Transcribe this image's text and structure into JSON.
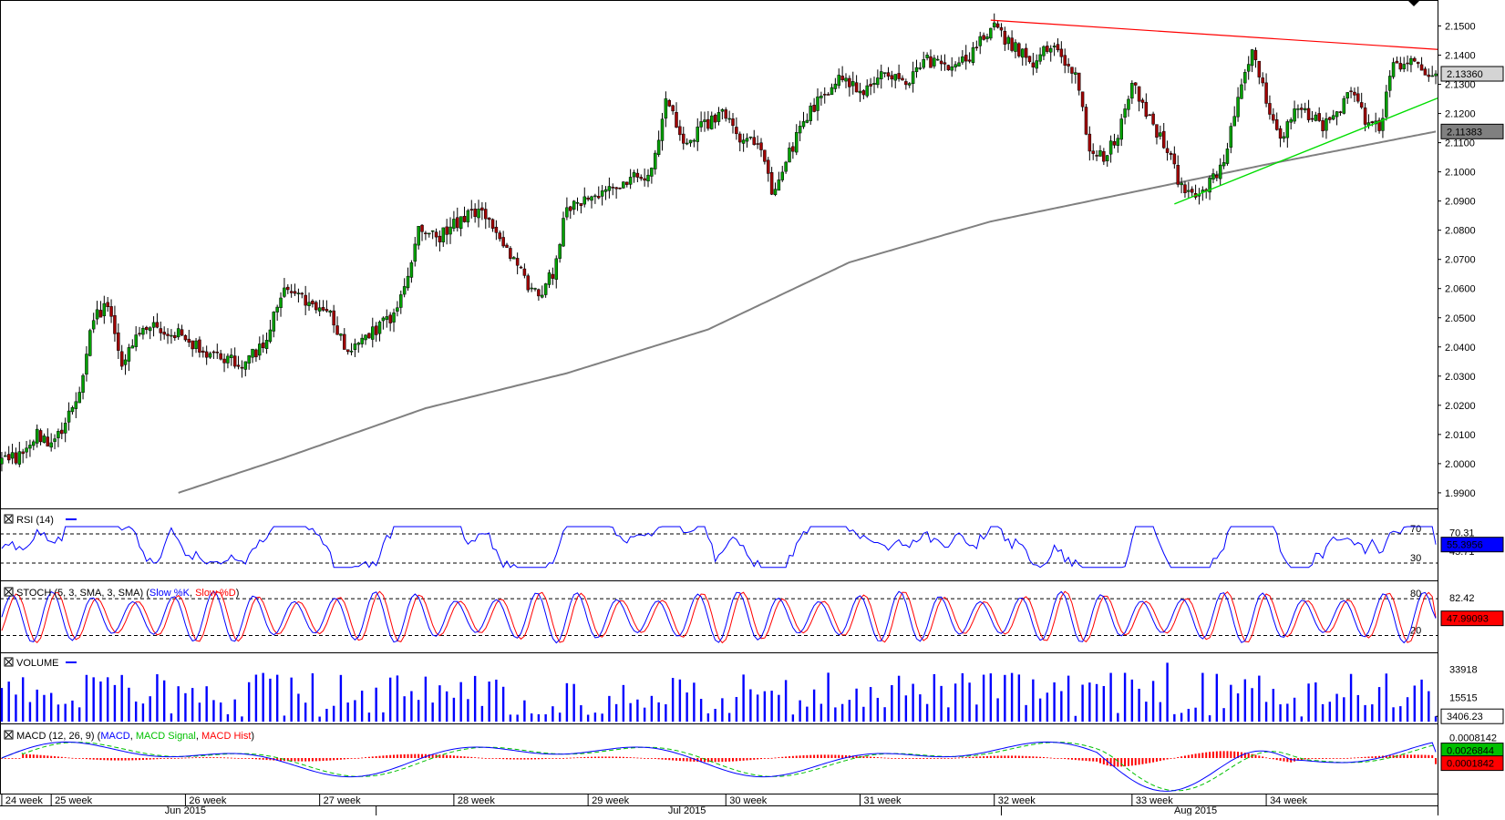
{
  "main_pane": {
    "price_ticks": [
      "2.1500",
      "2.1400",
      "2.1300",
      "2.1200",
      "2.1100",
      "2.1000",
      "2.0900",
      "2.0800",
      "2.0700",
      "2.0600",
      "2.0500",
      "2.0400",
      "2.0300",
      "2.0200",
      "2.0100",
      "2.0000",
      "1.9900"
    ],
    "last_price": "2.13360",
    "ma_value": "2.11383"
  },
  "rsi": {
    "title_text": "RSI (14)",
    "level_high": "70",
    "level_low": "30",
    "tick_high": "70.31",
    "tick_low": "45.71",
    "current": "55.3956"
  },
  "stoch": {
    "title_text": "STOCH (5, 3, SMA, 3, SMA)",
    "k_label": "Slow %K",
    "d_label": "Slow %D",
    "level_high": "80",
    "level_low": "20",
    "tick_high": "82.42",
    "current": "47.99093"
  },
  "volume": {
    "title_text": "VOLUME",
    "tick_high": "33918",
    "tick_mid": "15515",
    "current": "3406.23"
  },
  "macd": {
    "title_text": "MACD (12, 26, 9)",
    "macd_label": "MACD",
    "signal_label": "MACD Signal",
    "hist_label": "MACD Hist",
    "tick_high": "0.0008142",
    "macd_current": "0.0026844",
    "hist_current": "0.0001842"
  },
  "time_axis": {
    "weeks": [
      "24 week",
      "25 week",
      "26 week",
      "27 week",
      "28 week",
      "29 week",
      "30 week",
      "31 week",
      "32 week",
      "33 week",
      "34 week"
    ],
    "months": [
      "Jun 2015",
      "Jul 2015",
      "Aug 2015"
    ]
  },
  "colors": {
    "up_candle": "#00a000",
    "down_candle": "#a00000",
    "ma_line": "#808080",
    "resistance_line": "#ff0000",
    "support_line": "#00dd00",
    "rsi_line": "#0000ff",
    "stoch_k": "#0000ff",
    "stoch_d": "#ff0000",
    "volume_bar": "#0000ff",
    "macd_line": "#0000ff",
    "macd_signal": "#00c000",
    "macd_hist": "#ff0000"
  },
  "chart_data": {
    "type": "candlestick",
    "instrument_timeframe": "4-hour bars, June–August 2015",
    "y_range": [
      1.985,
      2.155
    ],
    "indicators": [
      "RSI (14)",
      "STOCH (5, 3, SMA, 3, SMA)",
      "VOLUME",
      "MACD (12, 26, 9)"
    ],
    "close_path": [
      [
        0,
        2.0
      ],
      [
        5,
        2.003
      ],
      [
        10,
        2.01
      ],
      [
        14,
        2.005
      ],
      [
        18,
        2.015
      ],
      [
        22,
        2.024
      ],
      [
        26,
        2.05
      ],
      [
        30,
        2.054
      ],
      [
        34,
        2.034
      ],
      [
        38,
        2.044
      ],
      [
        44,
        2.047
      ],
      [
        50,
        2.045
      ],
      [
        56,
        2.039
      ],
      [
        62,
        2.036
      ],
      [
        68,
        2.034
      ],
      [
        74,
        2.04
      ],
      [
        80,
        2.06
      ],
      [
        86,
        2.056
      ],
      [
        92,
        2.053
      ],
      [
        98,
        2.037
      ],
      [
        104,
        2.044
      ],
      [
        110,
        2.05
      ],
      [
        114,
        2.06
      ],
      [
        118,
        2.082
      ],
      [
        124,
        2.078
      ],
      [
        130,
        2.084
      ],
      [
        136,
        2.088
      ],
      [
        140,
        2.079
      ],
      [
        144,
        2.072
      ],
      [
        148,
        2.063
      ],
      [
        152,
        2.058
      ],
      [
        156,
        2.065
      ],
      [
        160,
        2.088
      ],
      [
        166,
        2.09
      ],
      [
        172,
        2.093
      ],
      [
        178,
        2.098
      ],
      [
        184,
        2.1
      ],
      [
        188,
        2.125
      ],
      [
        194,
        2.108
      ],
      [
        198,
        2.115
      ],
      [
        204,
        2.12
      ],
      [
        210,
        2.11
      ],
      [
        214,
        2.111
      ],
      [
        218,
        2.093
      ],
      [
        222,
        2.104
      ],
      [
        226,
        2.114
      ],
      [
        232,
        2.127
      ],
      [
        238,
        2.132
      ],
      [
        244,
        2.128
      ],
      [
        250,
        2.133
      ],
      [
        256,
        2.13
      ],
      [
        262,
        2.138
      ],
      [
        268,
        2.135
      ],
      [
        274,
        2.14
      ],
      [
        280,
        2.15
      ],
      [
        286,
        2.143
      ],
      [
        292,
        2.138
      ],
      [
        298,
        2.144
      ],
      [
        304,
        2.133
      ],
      [
        308,
        2.108
      ],
      [
        312,
        2.105
      ],
      [
        316,
        2.112
      ],
      [
        320,
        2.13
      ],
      [
        326,
        2.116
      ],
      [
        330,
        2.108
      ],
      [
        334,
        2.094
      ],
      [
        338,
        2.092
      ],
      [
        342,
        2.096
      ],
      [
        346,
        2.104
      ],
      [
        350,
        2.125
      ],
      [
        354,
        2.14
      ],
      [
        358,
        2.125
      ],
      [
        362,
        2.112
      ],
      [
        366,
        2.12
      ],
      [
        370,
        2.12
      ],
      [
        374,
        2.115
      ],
      [
        378,
        2.121
      ],
      [
        382,
        2.128
      ],
      [
        386,
        2.118
      ],
      [
        390,
        2.115
      ],
      [
        394,
        2.136
      ],
      [
        398,
        2.138
      ],
      [
        402,
        2.134
      ],
      [
        406,
        2.1336
      ]
    ],
    "ma_path": [
      [
        50,
        1.99
      ],
      [
        80,
        2.002
      ],
      [
        120,
        2.019
      ],
      [
        160,
        2.031
      ],
      [
        200,
        2.046
      ],
      [
        240,
        2.069
      ],
      [
        280,
        2.083
      ],
      [
        320,
        2.093
      ],
      [
        360,
        2.103
      ],
      [
        406,
        2.1138
      ]
    ],
    "resistance_line": [
      [
        280,
        2.152
      ],
      [
        406,
        2.142
      ]
    ],
    "support_line": [
      [
        332,
        2.089
      ],
      [
        406,
        2.125
      ]
    ],
    "last_price": 2.1336,
    "ma_last": 2.11383,
    "rsi_last": 55.3956,
    "stoch_last": 47.99093,
    "volume_last": 3406.23,
    "macd_last": 0.0026844,
    "macd_hist_last": 0.0001842
  }
}
